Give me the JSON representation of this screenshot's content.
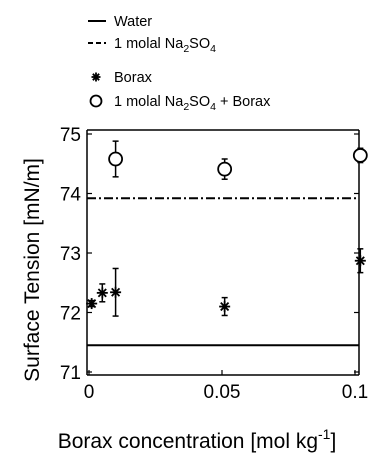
{
  "chart_data": {
    "type": "scatter",
    "xlabel": "Borax concentration [mol kg",
    "xlabel_superscript": "-1",
    "xlabel_suffix": "]",
    "ylabel": "Surface Tension [mN/m]",
    "xlim": [
      0,
      0.11
    ],
    "ylim": [
      71,
      75.2
    ],
    "xticks": [
      0,
      0.05,
      0.1
    ],
    "xtick_labels": [
      "0",
      "0.05",
      "0.1"
    ],
    "yticks": [
      71,
      72,
      73,
      74,
      75
    ],
    "ytick_labels": [
      "71",
      "72",
      "73",
      "74",
      "75"
    ],
    "grid": false,
    "legend_position": "top",
    "legend": [
      {
        "key": "water",
        "style": "solid-line",
        "label_parts": [
          {
            "t": "Water"
          }
        ]
      },
      {
        "key": "na2so4",
        "style": "dashed-line",
        "label_parts": [
          {
            "t": "1 molal Na"
          },
          {
            "t": "2",
            "sub": true
          },
          {
            "t": "SO"
          },
          {
            "t": "4",
            "sub": true
          }
        ]
      },
      {
        "key": "borax",
        "style": "star-marker",
        "label_parts": [
          {
            "t": "Borax"
          }
        ]
      },
      {
        "key": "na2so4_borax",
        "style": "circle-marker",
        "label_parts": [
          {
            "t": "1 molal Na"
          },
          {
            "t": "2",
            "sub": true
          },
          {
            "t": "SO"
          },
          {
            "t": "4",
            "sub": true
          },
          {
            "t": " + Borax"
          }
        ]
      }
    ],
    "reference_lines": [
      {
        "key": "water",
        "y": 71.45,
        "style": "solid"
      },
      {
        "key": "na2so4",
        "y": 73.92,
        "style": "dashdot"
      }
    ],
    "series": [
      {
        "key": "borax",
        "marker": "star",
        "points": [
          {
            "x": 0.001,
            "y": 72.15,
            "err": 0.05
          },
          {
            "x": 0.005,
            "y": 72.33,
            "err": 0.15
          },
          {
            "x": 0.01,
            "y": 72.34,
            "err": 0.4
          },
          {
            "x": 0.051,
            "y": 72.1,
            "err": 0.15
          },
          {
            "x": 0.102,
            "y": 72.87,
            "err": 0.2
          }
        ]
      },
      {
        "key": "na2so4_borax",
        "marker": "circle",
        "points": [
          {
            "x": 0.01,
            "y": 74.58,
            "err": 0.3
          },
          {
            "x": 0.051,
            "y": 74.41,
            "err": 0.17
          },
          {
            "x": 0.102,
            "y": 74.64,
            "err": 0.12
          }
        ]
      }
    ]
  }
}
